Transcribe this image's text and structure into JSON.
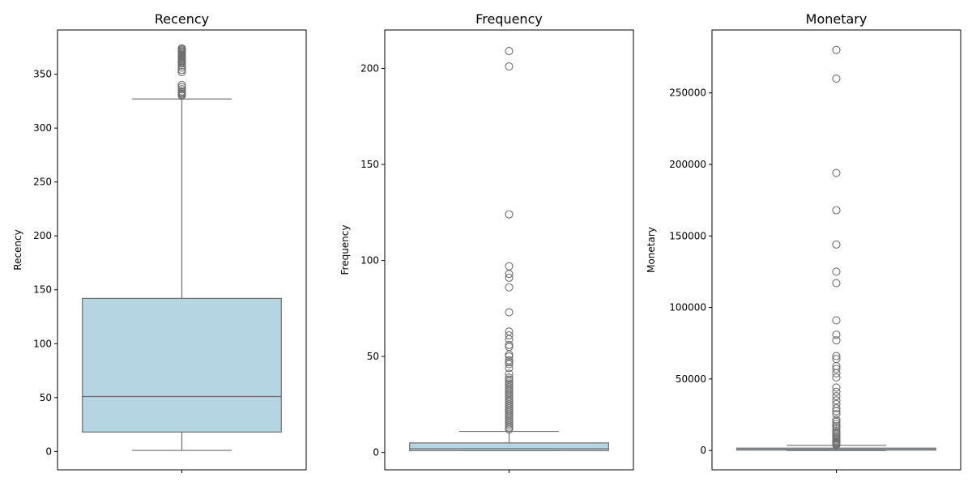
{
  "colors": {
    "box_fill": "#b4d5e1",
    "line": "#6e6e6e",
    "outlier_edge": "#6e6e6e"
  },
  "chart_data": [
    {
      "type": "box",
      "title": "Recency",
      "xlabel": "",
      "ylabel": "Recency",
      "ylim": [
        -17,
        391
      ],
      "yticks": [
        0,
        50,
        100,
        150,
        200,
        250,
        300,
        350
      ],
      "yticklabels": [
        "0",
        "50",
        "100",
        "150",
        "200",
        "250",
        "300",
        "350"
      ],
      "grid": false,
      "box": {
        "min": 1,
        "q1": 18,
        "median": 51,
        "q3": 142,
        "max": 327
      },
      "outliers": [
        330,
        331,
        332,
        333,
        334,
        336,
        338,
        340,
        352,
        354,
        356,
        358,
        360,
        361,
        362,
        363,
        364,
        365,
        366,
        367,
        368,
        369,
        370,
        371,
        372,
        373,
        374
      ]
    },
    {
      "type": "box",
      "title": "Frequency",
      "xlabel": "",
      "ylabel": "Frequency",
      "ylim": [
        -9,
        220
      ],
      "yticks": [
        0,
        50,
        100,
        150,
        200
      ],
      "yticklabels": [
        "0",
        "50",
        "100",
        "150",
        "200"
      ],
      "grid": false,
      "box": {
        "min": 1,
        "q1": 1,
        "median": 2,
        "q3": 5,
        "max": 11
      },
      "outliers": [
        12,
        13,
        14,
        15,
        16,
        17,
        18,
        19,
        20,
        21,
        22,
        23,
        24,
        25,
        26,
        27,
        28,
        29,
        30,
        31,
        32,
        33,
        34,
        35,
        36,
        37,
        38,
        39,
        41,
        44,
        46,
        47,
        48,
        50,
        51,
        55,
        56,
        59,
        61,
        63,
        73,
        86,
        91,
        93,
        97,
        124,
        201,
        209
      ]
    },
    {
      "type": "box",
      "title": "Monetary",
      "xlabel": "",
      "ylabel": "Monetary",
      "ylim": [
        -13500,
        294000
      ],
      "yticks": [
        0,
        50000,
        100000,
        150000,
        200000,
        250000
      ],
      "yticklabels": [
        "0",
        "50000",
        "100000",
        "150000",
        "200000",
        "250000"
      ],
      "grid": false,
      "box": {
        "min": 0,
        "q1": 300,
        "median": 670,
        "q3": 1660,
        "max": 3600
      },
      "outliers": [
        3800,
        4200,
        4700,
        5300,
        6000,
        6800,
        7600,
        8500,
        9400,
        10400,
        11500,
        12700,
        14000,
        15500,
        17000,
        18500,
        20000,
        21500,
        25500,
        27500,
        29500,
        32500,
        35000,
        38000,
        41000,
        44000,
        51000,
        54000,
        57000,
        59000,
        64000,
        66000,
        77000,
        81000,
        91000,
        117000,
        125000,
        144000,
        168000,
        194000,
        260000,
        280000
      ]
    }
  ]
}
